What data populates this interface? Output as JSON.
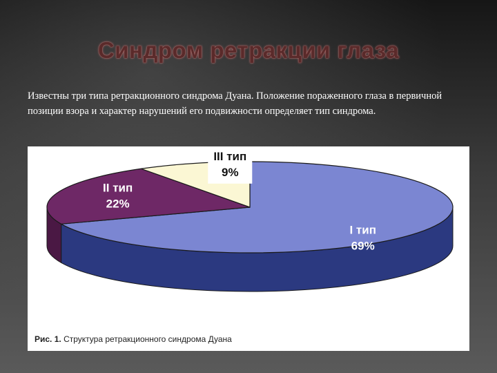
{
  "slide": {
    "title": "Синдром ретракции глаза",
    "text": "Известны три типа ретракционного синдрома Дуана. Положение пораженного глаза в первичной позиции взора и характер нарушений его подвижности определяет тип синдрома."
  },
  "figure": {
    "caption_number": "Рис. 1.",
    "caption_text": "Структура ретракционного синдрома Дуана"
  },
  "chart_data": {
    "type": "pie",
    "title": "",
    "slices": [
      {
        "name": "I тип",
        "value": 69,
        "value_label": "69%",
        "color": "#7b86d2",
        "side_color": "#2b3980"
      },
      {
        "name": "II тип",
        "value": 22,
        "value_label": "22%",
        "color": "#6e2866",
        "side_color": "#4a1844"
      },
      {
        "name": "III тип",
        "value": 9,
        "value_label": "9%",
        "color": "#fbf7d4",
        "side_color": "#d8d2a8"
      }
    ],
    "legend": "none",
    "style": "3d"
  }
}
